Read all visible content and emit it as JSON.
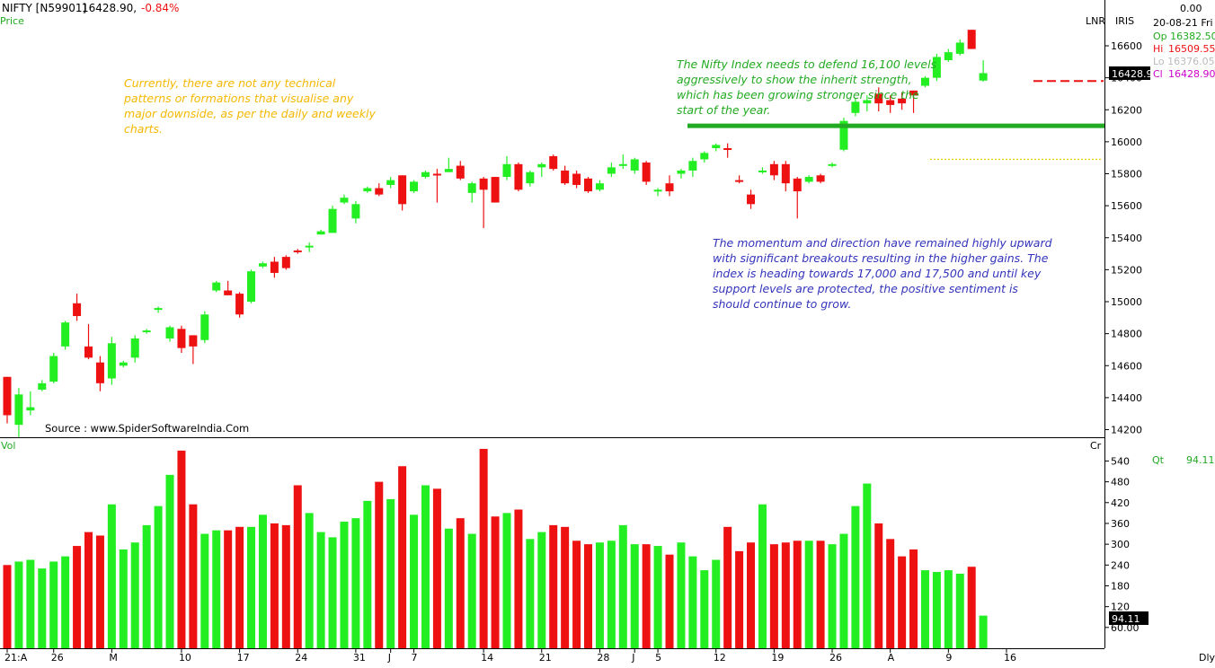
{
  "header": {
    "symbol": "NIFTY [N59901]",
    "price": "16428.90,",
    "change": "-0.84%",
    "price_label": "Price"
  },
  "right_panel": {
    "top_value": "0.00",
    "lnr": "LNR",
    "iris": "IRIS",
    "date": "20-08-21 Fri",
    "open": "Op 16382.50",
    "high_label": "Hi",
    "high_value": "16509.55",
    "low": "Lo 16376.05",
    "close_label": "Cl",
    "close_value": "16428.90",
    "last_box": "16428.9",
    "qt_label": "Qt",
    "qt_value": "94.11",
    "vol_box": "94.11",
    "cr": "Cr",
    "dly": "Dly"
  },
  "volume_label": "Vol",
  "annotations": {
    "orange": "Currently, there are not any technical patterns or formations that visualise any major downside, as per the daily and weekly charts.",
    "green": "The Nifty Index needs to defend 16,100 levels aggressively to show the inherit strength, which has been growing stronger since the start of the year.",
    "blue": "The momentum and direction have remained highly upward with significant breakouts resulting in the higher gains. The index is heading towards 17,000 and 17,500 and until key support levels are protected, the positive sentiment is should continue to grow."
  },
  "source": "Source : www.SpiderSoftwareIndia.Com",
  "colors": {
    "up": "#22ee22",
    "down": "#ee1111",
    "orange_text": "#f5b800",
    "green_text": "#22aa22",
    "blue_text": "#3333bb",
    "support_line": "#22aa22"
  },
  "chart_data": {
    "type": "candlestick",
    "price_axis": {
      "ticks": [
        14200,
        14400,
        14600,
        14800,
        15000,
        15200,
        15400,
        15600,
        15800,
        16000,
        16200,
        16400,
        16600
      ],
      "range": [
        14150,
        16780
      ]
    },
    "volume_axis": {
      "ticks": [
        60,
        120,
        180,
        240,
        300,
        360,
        420,
        480,
        540
      ],
      "range": [
        0,
        580
      ]
    },
    "x_tick_labels": [
      "21:A",
      "26",
      "M",
      "10",
      "17",
      "24",
      "31",
      "J",
      "7",
      "14",
      "21",
      "28",
      "J",
      "5",
      "12",
      "19",
      "26",
      "A",
      "9",
      "16"
    ],
    "x_tick_positions": [
      0,
      4,
      9,
      15,
      20,
      25,
      30,
      33,
      35,
      41,
      46,
      51,
      54,
      56,
      61,
      66,
      71,
      76,
      81,
      86
    ],
    "support_level": 16100,
    "candles": [
      {
        "o": 14530,
        "h": 14530,
        "l": 14240,
        "c": 14290,
        "v": 240
      },
      {
        "o": 14230,
        "h": 14460,
        "l": 14150,
        "c": 14420,
        "v": 250
      },
      {
        "o": 14320,
        "h": 14440,
        "l": 14290,
        "c": 14340,
        "v": 255
      },
      {
        "o": 14450,
        "h": 14510,
        "l": 14440,
        "c": 14490,
        "v": 230
      },
      {
        "o": 14500,
        "h": 14680,
        "l": 14490,
        "c": 14660,
        "v": 250
      },
      {
        "o": 14720,
        "h": 14880,
        "l": 14700,
        "c": 14870,
        "v": 265
      },
      {
        "o": 14990,
        "h": 15050,
        "l": 14880,
        "c": 14910,
        "v": 295
      },
      {
        "o": 14720,
        "h": 14860,
        "l": 14640,
        "c": 14650,
        "v": 335
      },
      {
        "o": 14620,
        "h": 14660,
        "l": 14440,
        "c": 14490,
        "v": 325
      },
      {
        "o": 14520,
        "h": 14780,
        "l": 14480,
        "c": 14740,
        "v": 415
      },
      {
        "o": 14600,
        "h": 14630,
        "l": 14590,
        "c": 14620,
        "v": 285
      },
      {
        "o": 14650,
        "h": 14790,
        "l": 14620,
        "c": 14770,
        "v": 305
      },
      {
        "o": 14810,
        "h": 14830,
        "l": 14800,
        "c": 14820,
        "v": 355
      },
      {
        "o": 14950,
        "h": 14970,
        "l": 14930,
        "c": 14960,
        "v": 410
      },
      {
        "o": 14770,
        "h": 14850,
        "l": 14750,
        "c": 14840,
        "v": 500
      },
      {
        "o": 14830,
        "h": 14850,
        "l": 14680,
        "c": 14710,
        "v": 570
      },
      {
        "o": 14790,
        "h": 14790,
        "l": 14610,
        "c": 14720,
        "v": 415
      },
      {
        "o": 14760,
        "h": 14940,
        "l": 14740,
        "c": 14920,
        "v": 330
      },
      {
        "o": 15070,
        "h": 15130,
        "l": 15060,
        "c": 15120,
        "v": 340
      },
      {
        "o": 15070,
        "h": 15130,
        "l": 15040,
        "c": 15040,
        "v": 340
      },
      {
        "o": 15050,
        "h": 15060,
        "l": 14900,
        "c": 14920,
        "v": 350
      },
      {
        "o": 15000,
        "h": 15200,
        "l": 14990,
        "c": 15190,
        "v": 350
      },
      {
        "o": 15220,
        "h": 15250,
        "l": 15210,
        "c": 15240,
        "v": 385
      },
      {
        "o": 15250,
        "h": 15280,
        "l": 15150,
        "c": 15180,
        "v": 360
      },
      {
        "o": 15280,
        "h": 15290,
        "l": 15200,
        "c": 15210,
        "v": 355
      },
      {
        "o": 15320,
        "h": 15330,
        "l": 15300,
        "c": 15310,
        "v": 470
      },
      {
        "o": 15340,
        "h": 15370,
        "l": 15310,
        "c": 15350,
        "v": 390
      },
      {
        "o": 15420,
        "h": 15450,
        "l": 15420,
        "c": 15440,
        "v": 335
      },
      {
        "o": 15430,
        "h": 15600,
        "l": 15430,
        "c": 15580,
        "v": 320
      },
      {
        "o": 15620,
        "h": 15670,
        "l": 15610,
        "c": 15650,
        "v": 365
      },
      {
        "o": 15520,
        "h": 15630,
        "l": 15490,
        "c": 15610,
        "v": 375
      },
      {
        "o": 15690,
        "h": 15720,
        "l": 15680,
        "c": 15710,
        "v": 425
      },
      {
        "o": 15710,
        "h": 15740,
        "l": 15660,
        "c": 15670,
        "v": 480
      },
      {
        "o": 15730,
        "h": 15780,
        "l": 15710,
        "c": 15760,
        "v": 430
      },
      {
        "o": 15790,
        "h": 15790,
        "l": 15570,
        "c": 15610,
        "v": 525
      },
      {
        "o": 15690,
        "h": 15760,
        "l": 15680,
        "c": 15750,
        "v": 385
      },
      {
        "o": 15780,
        "h": 15820,
        "l": 15770,
        "c": 15810,
        "v": 470
      },
      {
        "o": 15800,
        "h": 15830,
        "l": 15620,
        "c": 15790,
        "v": 460
      },
      {
        "o": 15810,
        "h": 15900,
        "l": 15810,
        "c": 15830,
        "v": 345
      },
      {
        "o": 15850,
        "h": 15880,
        "l": 15760,
        "c": 15770,
        "v": 375
      },
      {
        "o": 15680,
        "h": 15750,
        "l": 15620,
        "c": 15740,
        "v": 330
      },
      {
        "o": 15770,
        "h": 15780,
        "l": 15460,
        "c": 15700,
        "v": 575
      },
      {
        "o": 15780,
        "h": 15780,
        "l": 15620,
        "c": 15620,
        "v": 380
      },
      {
        "o": 15780,
        "h": 15910,
        "l": 15760,
        "c": 15860,
        "v": 390
      },
      {
        "o": 15860,
        "h": 15870,
        "l": 15690,
        "c": 15700,
        "v": 400
      },
      {
        "o": 15740,
        "h": 15820,
        "l": 15720,
        "c": 15810,
        "v": 315
      },
      {
        "o": 15840,
        "h": 15870,
        "l": 15780,
        "c": 15860,
        "v": 335
      },
      {
        "o": 15910,
        "h": 15920,
        "l": 15820,
        "c": 15830,
        "v": 355
      },
      {
        "o": 15820,
        "h": 15850,
        "l": 15730,
        "c": 15740,
        "v": 350
      },
      {
        "o": 15800,
        "h": 15820,
        "l": 15710,
        "c": 15730,
        "v": 310
      },
      {
        "o": 15770,
        "h": 15780,
        "l": 15680,
        "c": 15690,
        "v": 300
      },
      {
        "o": 15700,
        "h": 15760,
        "l": 15690,
        "c": 15740,
        "v": 305
      },
      {
        "o": 15800,
        "h": 15870,
        "l": 15780,
        "c": 15840,
        "v": 310
      },
      {
        "o": 15850,
        "h": 15920,
        "l": 15830,
        "c": 15860,
        "v": 355
      },
      {
        "o": 15820,
        "h": 15900,
        "l": 15800,
        "c": 15890,
        "v": 300
      },
      {
        "o": 15870,
        "h": 15880,
        "l": 15730,
        "c": 15750,
        "v": 300
      },
      {
        "o": 15700,
        "h": 15710,
        "l": 15660,
        "c": 15700,
        "v": 295
      },
      {
        "o": 15740,
        "h": 15790,
        "l": 15660,
        "c": 15690,
        "v": 270
      },
      {
        "o": 15800,
        "h": 15830,
        "l": 15770,
        "c": 15820,
        "v": 305
      },
      {
        "o": 15820,
        "h": 15900,
        "l": 15780,
        "c": 15880,
        "v": 265
      },
      {
        "o": 15890,
        "h": 15940,
        "l": 15870,
        "c": 15930,
        "v": 225
      },
      {
        "o": 15960,
        "h": 15990,
        "l": 15940,
        "c": 15980,
        "v": 255
      },
      {
        "o": 15960,
        "h": 15990,
        "l": 15900,
        "c": 15950,
        "v": 350
      },
      {
        "o": 15760,
        "h": 15790,
        "l": 15740,
        "c": 15750,
        "v": 280
      },
      {
        "o": 15670,
        "h": 15700,
        "l": 15580,
        "c": 15610,
        "v": 305
      },
      {
        "o": 15810,
        "h": 15840,
        "l": 15800,
        "c": 15820,
        "v": 415
      },
      {
        "o": 15860,
        "h": 15880,
        "l": 15760,
        "c": 15790,
        "v": 300
      },
      {
        "o": 15860,
        "h": 15880,
        "l": 15690,
        "c": 15740,
        "v": 305
      },
      {
        "o": 15770,
        "h": 15780,
        "l": 15520,
        "c": 15690,
        "v": 310
      },
      {
        "o": 15750,
        "h": 15790,
        "l": 15740,
        "c": 15780,
        "v": 310
      },
      {
        "o": 15790,
        "h": 15800,
        "l": 15740,
        "c": 15750,
        "v": 310
      },
      {
        "o": 15850,
        "h": 15870,
        "l": 15840,
        "c": 15860,
        "v": 300
      },
      {
        "o": 15950,
        "h": 16150,
        "l": 15940,
        "c": 16130,
        "v": 330
      },
      {
        "o": 16180,
        "h": 16270,
        "l": 16160,
        "c": 16250,
        "v": 410
      },
      {
        "o": 16240,
        "h": 16290,
        "l": 16190,
        "c": 16260,
        "v": 475
      },
      {
        "o": 16300,
        "h": 16340,
        "l": 16190,
        "c": 16240,
        "v": 360
      },
      {
        "o": 16260,
        "h": 16290,
        "l": 16180,
        "c": 16230,
        "v": 315
      },
      {
        "o": 16270,
        "h": 16310,
        "l": 16200,
        "c": 16240,
        "v": 265
      },
      {
        "o": 16320,
        "h": 16320,
        "l": 16180,
        "c": 16290,
        "v": 285
      },
      {
        "o": 16350,
        "h": 16410,
        "l": 16340,
        "c": 16400,
        "v": 225
      },
      {
        "o": 16400,
        "h": 16550,
        "l": 16380,
        "c": 16530,
        "v": 220
      },
      {
        "o": 16510,
        "h": 16580,
        "l": 16500,
        "c": 16560,
        "v": 225
      },
      {
        "o": 16550,
        "h": 16640,
        "l": 16540,
        "c": 16620,
        "v": 215
      },
      {
        "o": 16700,
        "h": 16700,
        "l": 16580,
        "c": 16580,
        "v": 235
      },
      {
        "o": 16382.5,
        "h": 16509.55,
        "l": 16376.05,
        "c": 16428.9,
        "v": 94.11
      }
    ]
  }
}
